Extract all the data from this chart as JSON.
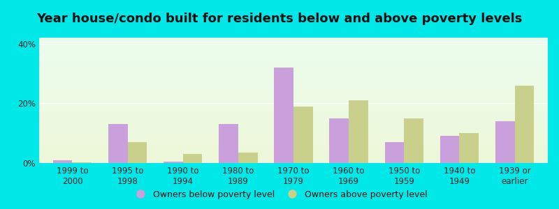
{
  "title": "Year house/condo built for residents below and above poverty levels",
  "categories": [
    "1999 to\n2000",
    "1995 to\n1998",
    "1990 to\n1994",
    "1980 to\n1989",
    "1970 to\n1979",
    "1960 to\n1969",
    "1950 to\n1959",
    "1940 to\n1949",
    "1939 or\nearlier"
  ],
  "below_poverty": [
    1.0,
    13.0,
    0.5,
    13.0,
    32.0,
    15.0,
    7.0,
    9.0,
    14.0
  ],
  "above_poverty": [
    0.3,
    7.0,
    3.0,
    3.5,
    19.0,
    21.0,
    15.0,
    10.0,
    26.0
  ],
  "below_color": "#c9a0dc",
  "above_color": "#c8d08c",
  "ylim": [
    0,
    42
  ],
  "yticks": [
    0,
    20,
    40
  ],
  "ytick_labels": [
    "0%",
    "20%",
    "40%"
  ],
  "legend_below": "Owners below poverty level",
  "legend_above": "Owners above poverty level",
  "background_cyan": "#00e8e8",
  "bar_width": 0.35,
  "title_fontsize": 13,
  "tick_fontsize": 8.5,
  "legend_fontsize": 9
}
